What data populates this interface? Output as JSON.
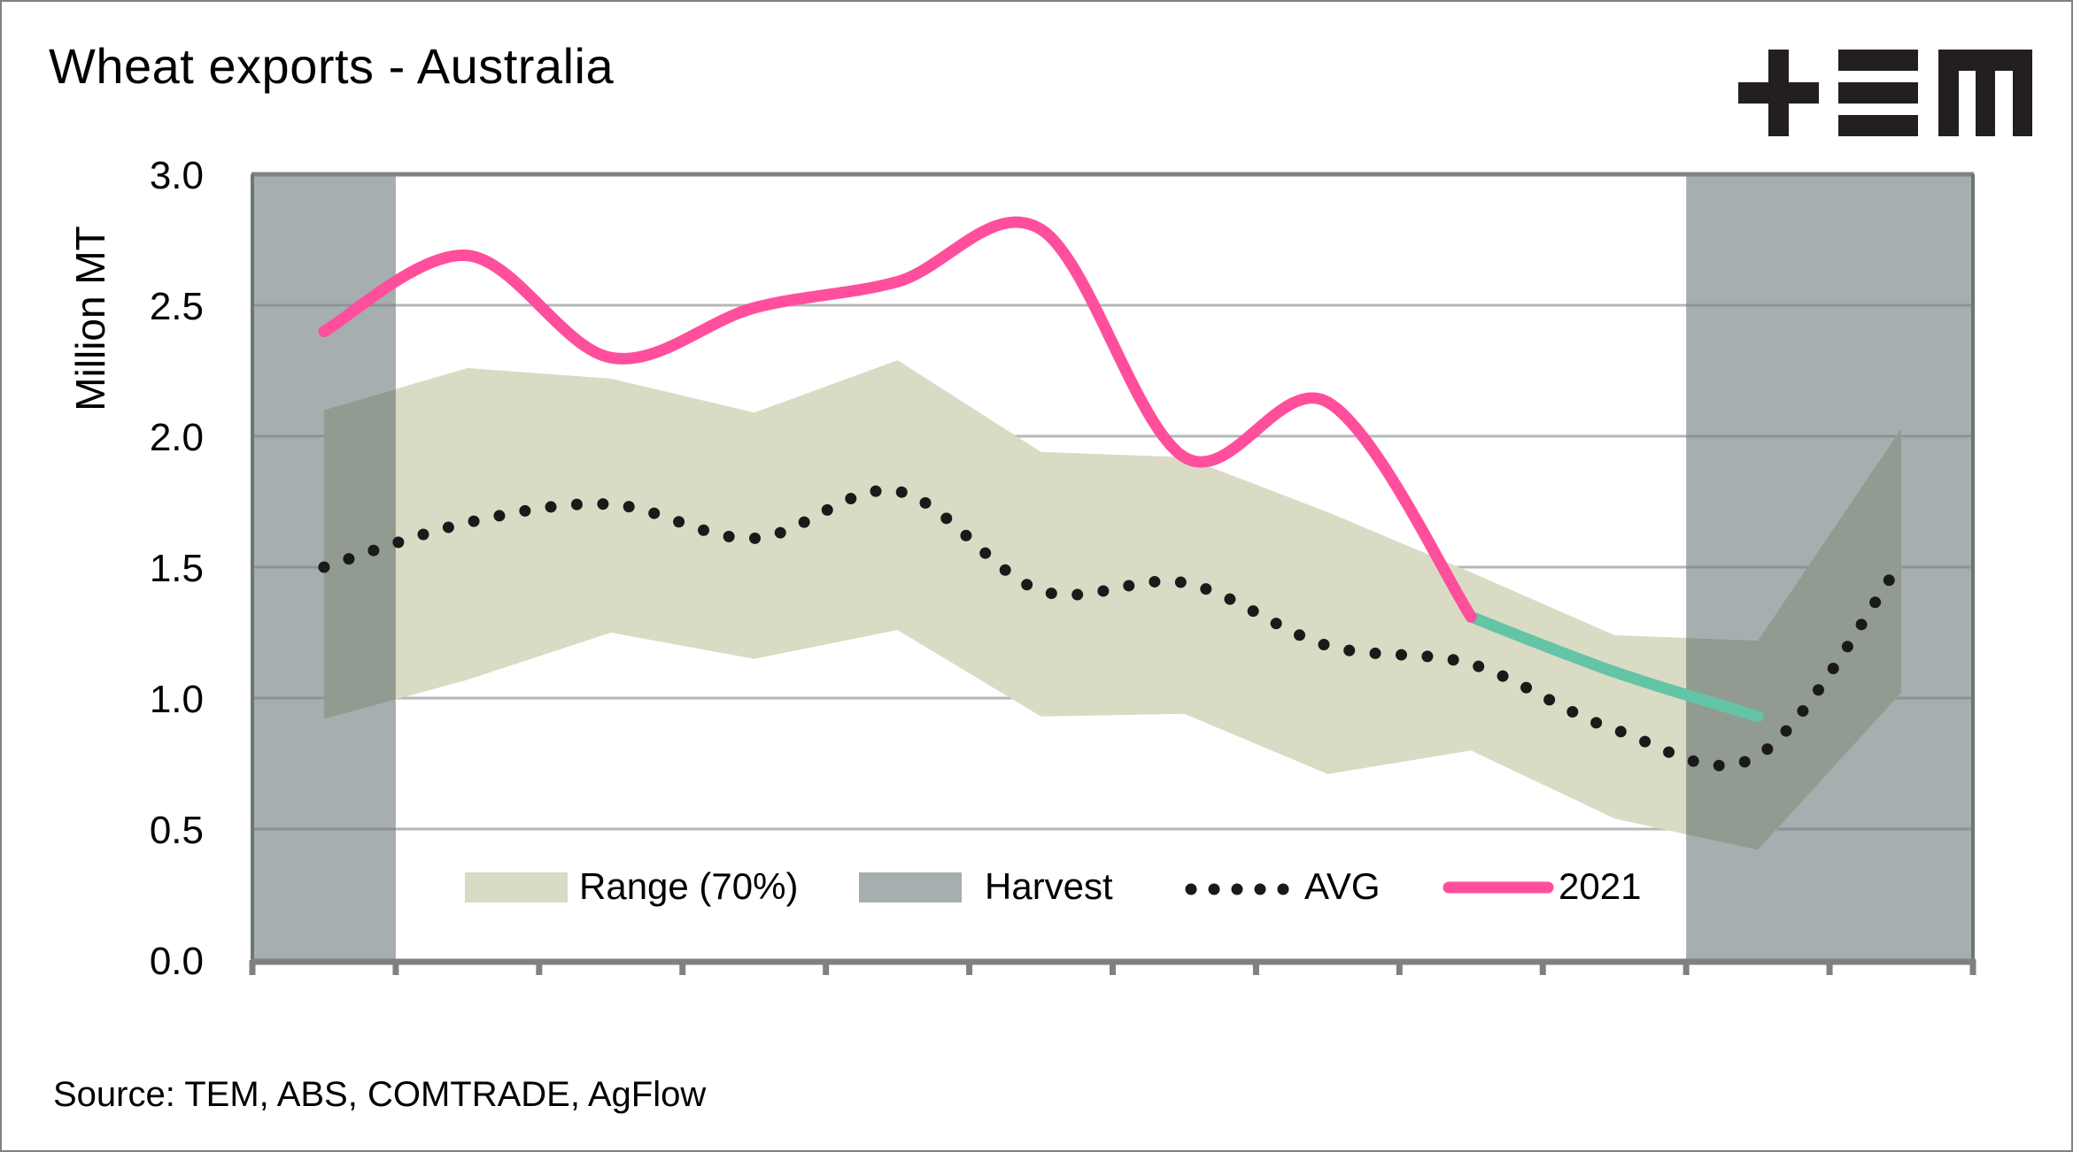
{
  "title": "Wheat exports - Australia",
  "source": "Source: TEM, ABS, COMTRADE, AgFlow",
  "logo": {
    "name": "TEM",
    "glyphs": [
      "plus-icon",
      "equals-bars-icon",
      "m-block-icon"
    ]
  },
  "colors": {
    "range": "#d9dbc5",
    "harvest": "#a6aeaf",
    "overlap": "#929b91",
    "avg": "#1a1a1a",
    "series_2021": "#ff4f9c",
    "series_2021_recent": "#63c4a6",
    "axis": "#808080",
    "grid": "#c0c0c0"
  },
  "chart_data": {
    "type": "line",
    "title": "Wheat exports - Australia",
    "xlabel": "",
    "ylabel": "Million MT",
    "ylim": [
      0,
      3.0
    ],
    "yticks": [
      "0.0",
      "0.5",
      "1.0",
      "1.5",
      "2.0",
      "2.5",
      "3.0"
    ],
    "ytick_values": [
      0,
      0.5,
      1.0,
      1.5,
      2.0,
      2.5,
      3.0
    ],
    "x_count": 12,
    "x_tick_labels": [],
    "grid": "horizontal",
    "legend_position": "bottom-inside",
    "legend": [
      "Range (70%)",
      "Harvest",
      "AVG",
      "2021"
    ],
    "harvest_periods": [
      [
        0,
        1
      ],
      [
        10,
        12
      ]
    ],
    "series": [
      {
        "name": "Range (70%) upper",
        "values": [
          2.1,
          2.26,
          2.22,
          2.09,
          2.29,
          1.94,
          1.92,
          1.71,
          1.48,
          1.24,
          1.22,
          2.03
        ]
      },
      {
        "name": "Range (70%) lower",
        "values": [
          0.92,
          1.07,
          1.25,
          1.15,
          1.26,
          0.93,
          0.94,
          0.71,
          0.8,
          0.54,
          0.42,
          1.02
        ]
      },
      {
        "name": "AVG",
        "values": [
          1.5,
          1.67,
          1.74,
          1.61,
          1.79,
          1.41,
          1.44,
          1.2,
          1.13,
          0.88,
          0.78,
          1.52
        ]
      },
      {
        "name": "2021",
        "values": [
          2.4,
          2.69,
          2.3,
          2.49,
          2.59,
          2.79,
          1.92,
          2.13,
          1.31,
          1.1,
          0.93,
          null
        ],
        "recent_from_index": 8
      }
    ]
  }
}
